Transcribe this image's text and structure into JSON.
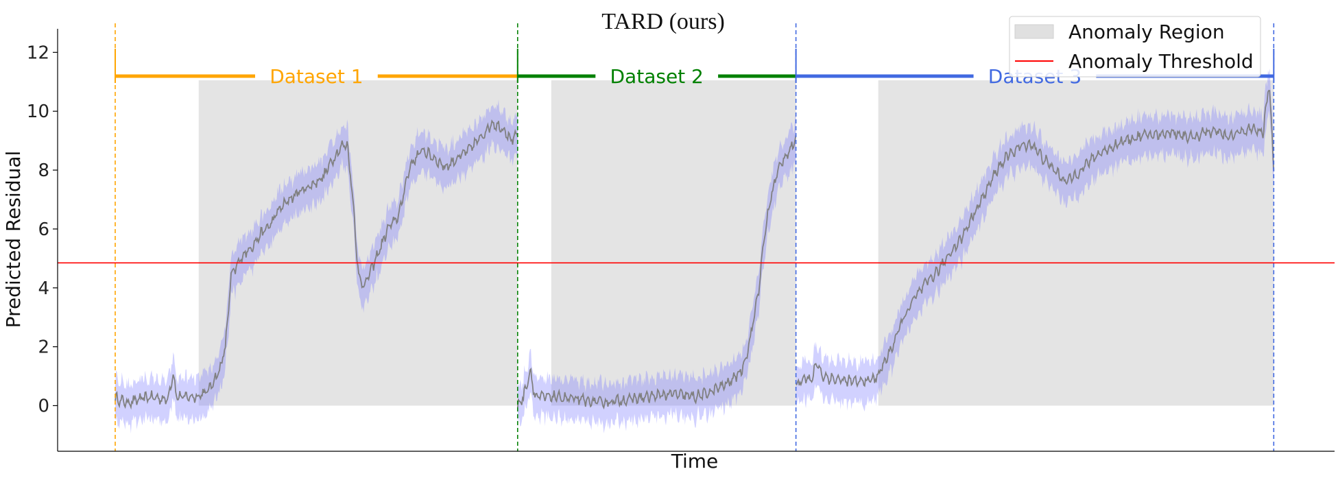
{
  "chart_data": {
    "type": "line",
    "title": "TARD (ours)",
    "xlabel": "Time",
    "ylabel": "Predicted Residual",
    "ylim": [
      -1.55,
      12.8
    ],
    "yticks": [
      0,
      2,
      4,
      6,
      8,
      10,
      12
    ],
    "xlim": [
      -0.04,
      1.03
    ],
    "threshold": {
      "name": "Anomaly Threshold",
      "value": 4.85,
      "color": "#ff0000"
    },
    "anomaly_region_name": "Anomaly Region",
    "legend_position": "top-right",
    "band_color": "#7b7bff",
    "line_color": "#808080",
    "segments": [
      {
        "name": "Dataset 1",
        "color": "#ffa500",
        "start": 0.0,
        "end": 0.347,
        "anomaly": {
          "start": 0.072,
          "end": 0.347,
          "top": 11.05
        },
        "series": [
          [
            0.0,
            0.25
          ],
          [
            0.01,
            0.1
          ],
          [
            0.03,
            0.3
          ],
          [
            0.045,
            0.2
          ],
          [
            0.05,
            1.1
          ],
          [
            0.053,
            0.3
          ],
          [
            0.07,
            0.3
          ],
          [
            0.08,
            0.5
          ],
          [
            0.09,
            1.2
          ],
          [
            0.095,
            2.0
          ],
          [
            0.1,
            4.4
          ],
          [
            0.11,
            5.1
          ],
          [
            0.12,
            5.5
          ],
          [
            0.125,
            5.8
          ],
          [
            0.135,
            6.2
          ],
          [
            0.14,
            6.6
          ],
          [
            0.15,
            7.0
          ],
          [
            0.16,
            7.3
          ],
          [
            0.17,
            7.5
          ],
          [
            0.18,
            7.8
          ],
          [
            0.185,
            8.2
          ],
          [
            0.19,
            8.5
          ],
          [
            0.195,
            8.8
          ],
          [
            0.2,
            8.9
          ],
          [
            0.205,
            7.0
          ],
          [
            0.21,
            4.3
          ],
          [
            0.215,
            4.1
          ],
          [
            0.225,
            5.0
          ],
          [
            0.235,
            6.0
          ],
          [
            0.245,
            6.5
          ],
          [
            0.25,
            7.5
          ],
          [
            0.255,
            8.2
          ],
          [
            0.265,
            8.7
          ],
          [
            0.275,
            8.4
          ],
          [
            0.285,
            8.1
          ],
          [
            0.295,
            8.4
          ],
          [
            0.305,
            8.7
          ],
          [
            0.315,
            9.1
          ],
          [
            0.325,
            9.6
          ],
          [
            0.335,
            9.4
          ],
          [
            0.342,
            9.0
          ],
          [
            0.347,
            9.2
          ]
        ]
      },
      {
        "name": "Dataset 2",
        "color": "#008000",
        "start": 0.347,
        "end": 0.587,
        "anomaly": {
          "start": 0.376,
          "end": 0.587,
          "top": 11.05
        },
        "series": [
          [
            0.347,
            0.0
          ],
          [
            0.352,
            0.3
          ],
          [
            0.358,
            1.2
          ],
          [
            0.362,
            0.3
          ],
          [
            0.38,
            0.3
          ],
          [
            0.4,
            0.2
          ],
          [
            0.42,
            0.1
          ],
          [
            0.44,
            0.2
          ],
          [
            0.46,
            0.3
          ],
          [
            0.48,
            0.4
          ],
          [
            0.5,
            0.3
          ],
          [
            0.51,
            0.4
          ],
          [
            0.52,
            0.6
          ],
          [
            0.53,
            0.8
          ],
          [
            0.54,
            1.2
          ],
          [
            0.545,
            1.8
          ],
          [
            0.55,
            2.8
          ],
          [
            0.555,
            4.0
          ],
          [
            0.56,
            5.8
          ],
          [
            0.565,
            7.0
          ],
          [
            0.57,
            7.8
          ],
          [
            0.575,
            8.3
          ],
          [
            0.58,
            8.6
          ],
          [
            0.587,
            9.0
          ]
        ]
      },
      {
        "name": "Dataset 3",
        "color": "#4169e1",
        "start": 0.587,
        "end": 0.999,
        "anomaly": {
          "start": 0.658,
          "end": 0.999,
          "top": 11.05
        },
        "series": [
          [
            0.587,
            0.7
          ],
          [
            0.595,
            1.0
          ],
          [
            0.6,
            0.8
          ],
          [
            0.605,
            1.5
          ],
          [
            0.61,
            1.0
          ],
          [
            0.62,
            0.9
          ],
          [
            0.64,
            0.8
          ],
          [
            0.655,
            0.9
          ],
          [
            0.66,
            1.2
          ],
          [
            0.67,
            2.0
          ],
          [
            0.68,
            3.0
          ],
          [
            0.69,
            3.7
          ],
          [
            0.7,
            4.2
          ],
          [
            0.71,
            4.6
          ],
          [
            0.72,
            5.2
          ],
          [
            0.73,
            5.7
          ],
          [
            0.74,
            6.5
          ],
          [
            0.75,
            7.2
          ],
          [
            0.76,
            8.0
          ],
          [
            0.77,
            8.5
          ],
          [
            0.78,
            8.8
          ],
          [
            0.79,
            8.9
          ],
          [
            0.8,
            8.4
          ],
          [
            0.81,
            8.0
          ],
          [
            0.82,
            7.6
          ],
          [
            0.83,
            7.9
          ],
          [
            0.84,
            8.3
          ],
          [
            0.85,
            8.6
          ],
          [
            0.86,
            8.8
          ],
          [
            0.87,
            9.0
          ],
          [
            0.88,
            9.1
          ],
          [
            0.89,
            9.2
          ],
          [
            0.9,
            9.2
          ],
          [
            0.91,
            9.3
          ],
          [
            0.92,
            9.2
          ],
          [
            0.93,
            9.1
          ],
          [
            0.94,
            9.3
          ],
          [
            0.95,
            9.3
          ],
          [
            0.96,
            9.1
          ],
          [
            0.97,
            9.3
          ],
          [
            0.98,
            9.4
          ],
          [
            0.99,
            9.3
          ],
          [
            0.995,
            11.0
          ],
          [
            0.999,
            8.0
          ]
        ]
      }
    ]
  }
}
